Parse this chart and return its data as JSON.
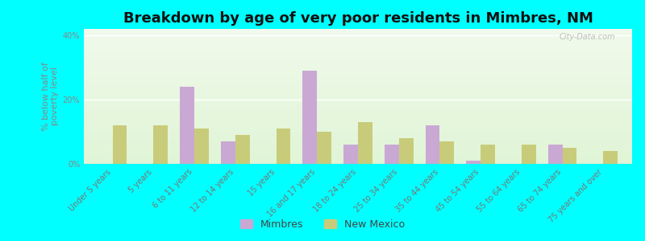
{
  "title": "Breakdown by age of very poor residents in Mimbres, NM",
  "ylabel": "% below half of\npoverty level",
  "categories": [
    "Under 5 years",
    "5 years",
    "6 to 11 years",
    "12 to 14 years",
    "15 years",
    "16 and 17 years",
    "18 to 24 years",
    "25 to 34 years",
    "35 to 44 years",
    "45 to 54 years",
    "55 to 64 years",
    "65 to 74 years",
    "75 years and over"
  ],
  "mimbres_values": [
    0,
    0,
    24,
    7,
    0,
    29,
    6,
    6,
    12,
    1,
    0,
    6,
    0
  ],
  "newmexico_values": [
    12,
    12,
    11,
    9,
    11,
    10,
    13,
    8,
    7,
    6,
    6,
    5,
    4
  ],
  "mimbres_color": "#c9a8d4",
  "newmexico_color": "#c8cc7a",
  "outer_bg_color": "#00ffff",
  "ylim": [
    0,
    42
  ],
  "yticks": [
    0,
    20,
    40
  ],
  "ytick_labels": [
    "0%",
    "20%",
    "40%"
  ],
  "bar_width": 0.35,
  "title_fontsize": 13,
  "axis_label_fontsize": 8,
  "tick_fontsize": 7,
  "legend_fontsize": 9,
  "watermark": "City-Data.com"
}
